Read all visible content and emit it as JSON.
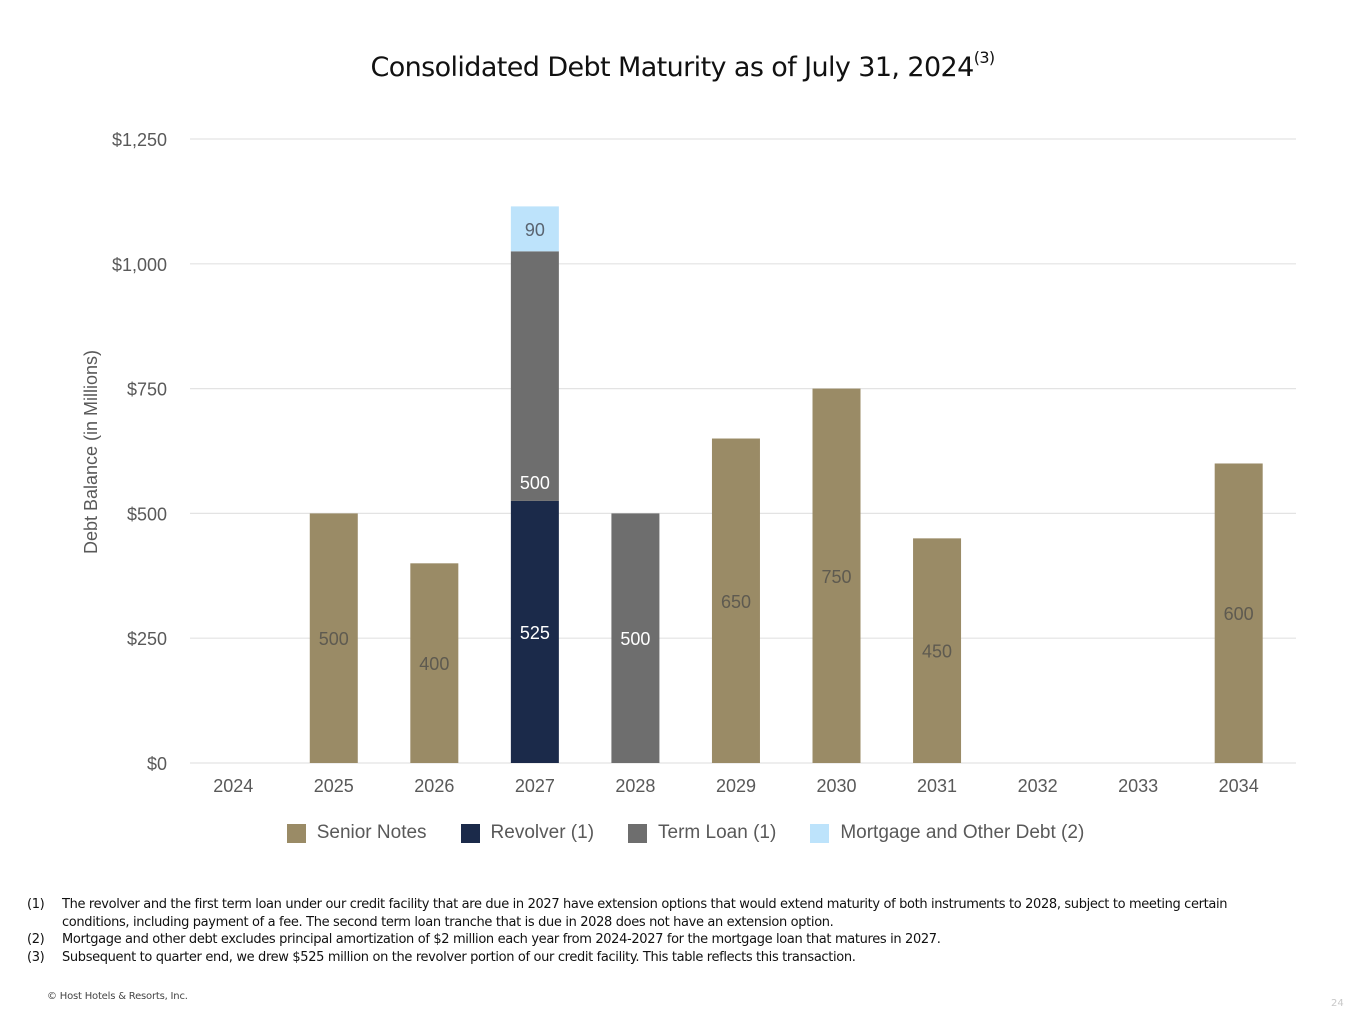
{
  "page": {
    "title": "Consolidated Debt Maturity as of July 31, 2024",
    "title_superscript": "(3)",
    "footnotes": [
      {
        "num": "(1)",
        "text": "The revolver and the first term loan under our credit facility that are due in 2027 have extension options that would extend maturity of both instruments to 2028, subject to meeting certain conditions, including payment of a fee. The second term loan tranche that is due in 2028 does not have an extension option."
      },
      {
        "num": "(2)",
        "text": "Mortgage and other debt excludes principal amortization of $2 million each year from 2024-2027 for the mortgage loan that matures in 2027."
      },
      {
        "num": "(3)",
        "text": "Subsequent to quarter end, we drew $525 million on the revolver portion of our credit facility. This table reflects this transaction."
      }
    ],
    "copyright": "© Host Hotels & Resorts, Inc.",
    "page_number": "24"
  },
  "chart_data": {
    "type": "bar",
    "stacked": true,
    "title": "Consolidated Debt Maturity as of July 31, 2024(3)",
    "xlabel": "",
    "ylabel": "Debt Balance (in Millions)",
    "ylim": [
      0,
      1250
    ],
    "yticks": [
      0,
      250,
      500,
      750,
      1000,
      1250
    ],
    "ytick_labels": [
      "$0",
      "$250",
      "$500",
      "$750",
      "$1,000",
      "$1,250"
    ],
    "grid": true,
    "legend_position": "bottom",
    "categories": [
      "2024",
      "2025",
      "2026",
      "2027",
      "2028",
      "2029",
      "2030",
      "2031",
      "2032",
      "2033",
      "2034"
    ],
    "series": [
      {
        "name": "Senior Notes",
        "color": "#9a8b66",
        "label_color": "#5e5a50",
        "values": [
          0,
          500,
          400,
          0,
          0,
          650,
          750,
          450,
          0,
          0,
          600
        ]
      },
      {
        "name": "Revolver (1)",
        "color": "#1b2a4a",
        "label_color": "#ffffff",
        "values": [
          0,
          0,
          0,
          525,
          0,
          0,
          0,
          0,
          0,
          0,
          0
        ]
      },
      {
        "name": "Term Loan (1)",
        "color": "#6e6e6e",
        "label_color": "#ffffff",
        "values": [
          0,
          0,
          0,
          500,
          500,
          0,
          0,
          0,
          0,
          0,
          0
        ]
      },
      {
        "name": "Mortgage and Other Debt (2)",
        "color": "#bde3fb",
        "label_color": "#5a6470",
        "values": [
          0,
          0,
          0,
          90,
          0,
          0,
          0,
          0,
          0,
          0,
          0
        ]
      }
    ]
  }
}
